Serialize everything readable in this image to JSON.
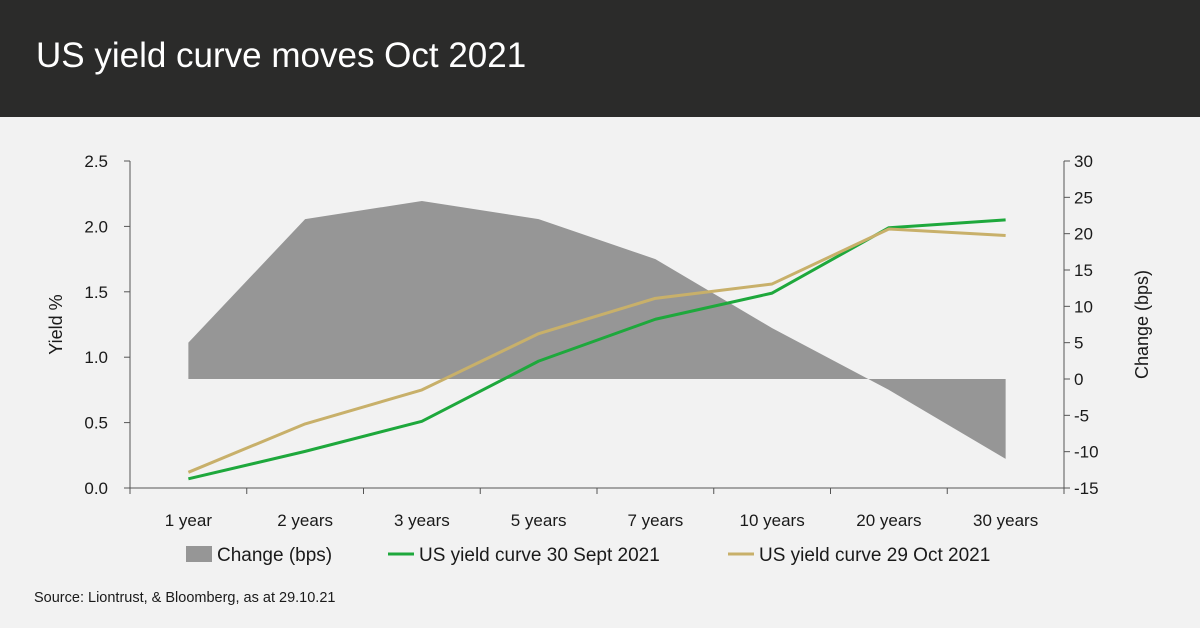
{
  "header": {
    "title": "US yield curve moves Oct 2021"
  },
  "source": "Source: Liontrust, & Bloomberg, as at 29.10.21",
  "colors": {
    "change": "#969696",
    "sept": "#1ea83c",
    "oct": "#c8b06a",
    "header_bg": "#2b2b2a"
  },
  "chart_data": {
    "type": "area+line",
    "title": "",
    "categories": [
      "1 year",
      "2 years",
      "3 years",
      "5 years",
      "7 years",
      "10 years",
      "20 years",
      "30 years"
    ],
    "y_left": {
      "label": "Yield %",
      "lim": [
        0.0,
        2.5
      ],
      "ticks": [
        "0.0",
        "0.5",
        "1.0",
        "1.5",
        "2.0",
        "2.5"
      ]
    },
    "y_right": {
      "label": "Change (bps)",
      "lim": [
        -15,
        30
      ],
      "ticks": [
        "-15",
        "-10",
        "-5",
        "0",
        "5",
        "10",
        "15",
        "20",
        "25",
        "30"
      ]
    },
    "series": [
      {
        "name": "Change (bps)",
        "axis": "right",
        "kind": "area",
        "values": [
          5,
          22,
          24.5,
          22,
          16.5,
          7,
          -1.5,
          -11
        ]
      },
      {
        "name": "US yield curve 30 Sept 2021",
        "axis": "left",
        "kind": "line",
        "values": [
          0.07,
          0.28,
          0.51,
          0.97,
          1.29,
          1.49,
          1.99,
          2.05
        ]
      },
      {
        "name": "US yield curve 29 Oct 2021",
        "axis": "left",
        "kind": "line",
        "values": [
          0.12,
          0.49,
          0.75,
          1.18,
          1.45,
          1.56,
          1.98,
          1.93
        ]
      }
    ],
    "legend": "bottom",
    "grid": false
  }
}
